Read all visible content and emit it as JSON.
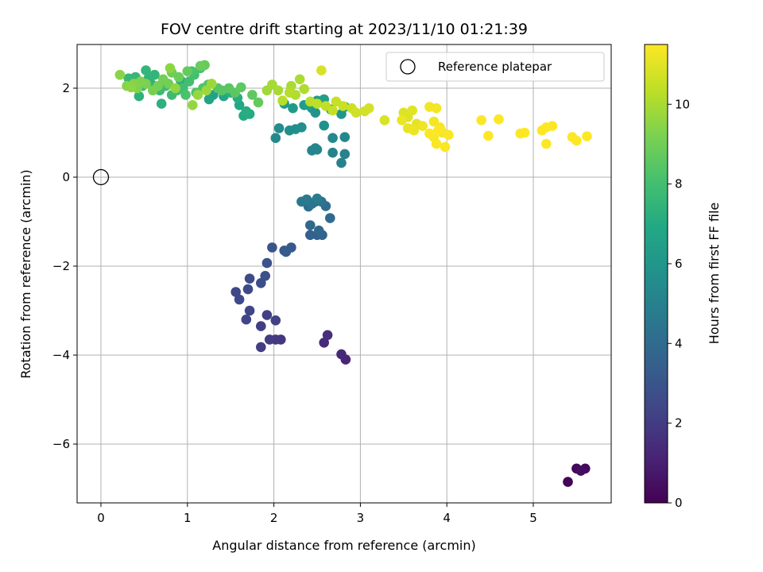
{
  "chart_data": {
    "type": "scatter",
    "title": "FOV centre drift starting at 2023/11/10 01:21:39",
    "xlabel": "Angular distance from reference (arcmin)",
    "ylabel": "Rotation from reference (arcmin)",
    "xlim": [
      -0.28,
      5.9
    ],
    "ylim": [
      -7.3,
      3.0
    ],
    "xticks": [
      0,
      1,
      2,
      3,
      4,
      5
    ],
    "yticks": [
      -6,
      -4,
      -2,
      0,
      2
    ],
    "grid": true,
    "legend": {
      "placement": "top-right",
      "entries": [
        "Reference platepar"
      ]
    },
    "reference_point": {
      "x": 0,
      "y": 0
    },
    "colorbar": {
      "label": "Hours from first FF file",
      "min": 0,
      "max": 11.5,
      "ticks": [
        0,
        2,
        4,
        6,
        8,
        10
      ],
      "colormap": "viridis"
    },
    "points": [
      [
        5.4,
        -6.85,
        0.1
      ],
      [
        5.5,
        -6.55,
        0.2
      ],
      [
        5.6,
        -6.55,
        0.3
      ],
      [
        5.55,
        -6.6,
        0.4
      ],
      [
        2.83,
        -4.1,
        1.2
      ],
      [
        2.78,
        -3.98,
        1.3
      ],
      [
        2.58,
        -3.72,
        1.4
      ],
      [
        2.62,
        -3.55,
        1.5
      ],
      [
        2.08,
        -3.65,
        1.8
      ],
      [
        2.02,
        -3.65,
        1.9
      ],
      [
        1.95,
        -3.65,
        2.0
      ],
      [
        1.85,
        -3.82,
        2.05
      ],
      [
        1.85,
        -3.35,
        2.1
      ],
      [
        1.92,
        -3.1,
        2.15
      ],
      [
        2.02,
        -3.22,
        2.2
      ],
      [
        1.68,
        -3.2,
        2.3
      ],
      [
        1.72,
        -3.0,
        2.35
      ],
      [
        1.6,
        -2.75,
        2.45
      ],
      [
        1.56,
        -2.58,
        2.5
      ],
      [
        1.7,
        -2.52,
        2.55
      ],
      [
        1.72,
        -2.28,
        2.6
      ],
      [
        1.85,
        -2.38,
        2.7
      ],
      [
        1.9,
        -2.22,
        2.8
      ],
      [
        1.92,
        -1.93,
        2.9
      ],
      [
        1.98,
        -1.58,
        3.0
      ],
      [
        2.12,
        -1.65,
        3.1
      ],
      [
        2.2,
        -1.58,
        3.2
      ],
      [
        2.14,
        -1.68,
        3.3
      ],
      [
        2.42,
        -1.3,
        3.5
      ],
      [
        2.5,
        -1.3,
        3.6
      ],
      [
        2.56,
        -1.3,
        3.7
      ],
      [
        2.52,
        -1.2,
        3.8
      ],
      [
        2.42,
        -1.08,
        3.9
      ],
      [
        2.65,
        -0.92,
        4.0
      ],
      [
        2.6,
        -0.65,
        4.1
      ],
      [
        2.4,
        -0.66,
        4.2
      ],
      [
        2.48,
        -0.55,
        4.3
      ],
      [
        2.55,
        -0.55,
        4.4
      ],
      [
        2.44,
        -0.6,
        4.5
      ],
      [
        2.32,
        -0.55,
        4.6
      ],
      [
        2.38,
        -0.5,
        4.7
      ],
      [
        2.5,
        -0.48,
        4.8
      ],
      [
        2.78,
        0.32,
        5.0
      ],
      [
        2.82,
        0.52,
        5.05
      ],
      [
        2.68,
        0.55,
        5.1
      ],
      [
        2.5,
        0.62,
        5.15
      ],
      [
        2.44,
        0.6,
        5.2
      ],
      [
        2.48,
        0.65,
        5.25
      ],
      [
        2.82,
        0.9,
        5.3
      ],
      [
        2.68,
        0.88,
        5.35
      ],
      [
        2.02,
        0.88,
        5.4
      ],
      [
        2.06,
        1.1,
        5.5
      ],
      [
        2.18,
        1.05,
        5.6
      ],
      [
        2.32,
        1.12,
        5.65
      ],
      [
        2.25,
        1.08,
        5.7
      ],
      [
        2.58,
        1.16,
        5.75
      ],
      [
        2.48,
        1.45,
        5.8
      ],
      [
        2.44,
        1.55,
        5.9
      ],
      [
        2.78,
        1.42,
        6.0
      ],
      [
        2.82,
        1.58,
        6.05
      ],
      [
        2.66,
        1.52,
        6.1
      ],
      [
        2.35,
        1.62,
        6.2
      ],
      [
        2.22,
        1.55,
        6.25
      ],
      [
        2.12,
        1.65,
        6.3
      ],
      [
        2.5,
        1.72,
        6.35
      ],
      [
        2.58,
        1.75,
        6.4
      ],
      [
        2.4,
        1.62,
        6.45
      ],
      [
        1.3,
        1.85,
        6.6
      ],
      [
        1.25,
        1.75,
        6.7
      ],
      [
        1.42,
        1.82,
        6.8
      ],
      [
        1.6,
        1.62,
        6.9
      ],
      [
        1.65,
        1.38,
        7.0
      ],
      [
        1.72,
        1.42,
        7.05
      ],
      [
        1.68,
        1.48,
        7.1
      ],
      [
        1.58,
        1.78,
        7.15
      ],
      [
        1.5,
        1.9,
        7.2
      ],
      [
        0.92,
        2.18,
        7.25
      ],
      [
        0.7,
        1.65,
        7.3
      ],
      [
        0.44,
        1.82,
        7.35
      ],
      [
        0.58,
        2.1,
        7.4
      ],
      [
        0.55,
        2.22,
        7.45
      ],
      [
        0.62,
        2.3,
        7.5
      ],
      [
        0.52,
        2.4,
        7.55
      ],
      [
        0.4,
        2.25,
        7.6
      ],
      [
        0.32,
        2.22,
        7.65
      ],
      [
        0.48,
        2.05,
        7.7
      ],
      [
        0.68,
        1.95,
        7.75
      ],
      [
        0.75,
        2.05,
        7.8
      ],
      [
        0.82,
        1.85,
        7.85
      ],
      [
        0.88,
        1.95,
        7.9
      ],
      [
        0.95,
        2.0,
        7.95
      ],
      [
        1.02,
        2.15,
        8.0
      ],
      [
        1.08,
        2.3,
        8.05
      ],
      [
        1.15,
        2.45,
        8.1
      ],
      [
        1.05,
        2.38,
        8.15
      ],
      [
        0.98,
        1.85,
        8.2
      ],
      [
        1.1,
        1.9,
        8.25
      ],
      [
        1.18,
        2.0,
        8.3
      ],
      [
        1.24,
        2.08,
        8.35
      ],
      [
        1.35,
        2.0,
        8.4
      ],
      [
        1.4,
        1.95,
        8.45
      ],
      [
        1.48,
        2.0,
        8.5
      ],
      [
        1.55,
        1.9,
        8.55
      ],
      [
        1.62,
        2.02,
        8.6
      ],
      [
        1.75,
        1.85,
        8.65
      ],
      [
        1.82,
        1.68,
        8.7
      ],
      [
        1.0,
        2.38,
        8.75
      ],
      [
        1.2,
        2.52,
        8.8
      ],
      [
        1.15,
        2.5,
        8.85
      ],
      [
        0.9,
        2.25,
        8.9
      ],
      [
        0.82,
        2.35,
        8.95
      ],
      [
        0.78,
        2.1,
        9.0
      ],
      [
        0.72,
        2.2,
        9.05
      ],
      [
        0.66,
        2.05,
        9.1
      ],
      [
        0.6,
        1.95,
        9.15
      ],
      [
        0.52,
        2.1,
        9.2
      ],
      [
        0.46,
        2.15,
        9.25
      ],
      [
        0.42,
        2.0,
        9.3
      ],
      [
        0.38,
        2.1,
        9.35
      ],
      [
        0.3,
        2.05,
        9.4
      ],
      [
        0.22,
        2.3,
        9.45
      ],
      [
        0.35,
        2.02,
        9.5
      ],
      [
        0.8,
        2.45,
        9.55
      ],
      [
        0.86,
        2.0,
        9.6
      ],
      [
        1.06,
        1.62,
        9.65
      ],
      [
        1.12,
        1.85,
        9.7
      ],
      [
        1.22,
        1.95,
        9.75
      ],
      [
        1.28,
        2.1,
        9.8
      ],
      [
        1.92,
        1.95,
        9.85
      ],
      [
        1.98,
        2.08,
        9.9
      ],
      [
        2.05,
        1.95,
        9.95
      ],
      [
        2.2,
        2.05,
        10.0
      ],
      [
        2.3,
        2.2,
        10.05
      ],
      [
        2.35,
        1.98,
        10.1
      ],
      [
        2.25,
        1.85,
        10.15
      ],
      [
        2.18,
        1.9,
        10.2
      ],
      [
        2.1,
        1.72,
        10.25
      ],
      [
        2.42,
        1.7,
        10.3
      ],
      [
        2.5,
        1.65,
        10.35
      ],
      [
        2.6,
        1.6,
        10.4
      ],
      [
        2.68,
        1.5,
        10.45
      ],
      [
        2.72,
        1.7,
        10.5
      ],
      [
        2.8,
        1.6,
        10.55
      ],
      [
        2.9,
        1.55,
        10.6
      ],
      [
        2.95,
        1.45,
        10.65
      ],
      [
        3.05,
        1.48,
        10.7
      ],
      [
        3.1,
        1.55,
        10.75
      ],
      [
        2.55,
        2.4,
        10.8
      ],
      [
        3.28,
        1.28,
        10.85
      ],
      [
        3.5,
        1.45,
        10.9
      ],
      [
        3.55,
        1.35,
        10.95
      ],
      [
        3.6,
        1.5,
        11.0
      ],
      [
        3.65,
        1.2,
        11.05
      ],
      [
        3.55,
        1.1,
        11.1
      ],
      [
        3.48,
        1.28,
        11.15
      ],
      [
        3.62,
        1.05,
        11.2
      ],
      [
        3.72,
        1.15,
        11.25
      ],
      [
        3.8,
        1.58,
        11.3
      ],
      [
        3.88,
        1.55,
        11.32
      ],
      [
        3.85,
        1.25,
        11.34
      ],
      [
        3.92,
        1.12,
        11.36
      ],
      [
        3.95,
        1.0,
        11.38
      ],
      [
        3.85,
        0.9,
        11.4
      ],
      [
        3.88,
        0.75,
        11.42
      ],
      [
        3.98,
        0.68,
        11.44
      ],
      [
        4.02,
        0.95,
        11.45
      ],
      [
        3.9,
        1.05,
        11.46
      ],
      [
        3.8,
        0.98,
        11.47
      ],
      [
        4.4,
        1.28,
        11.48
      ],
      [
        4.6,
        1.3,
        11.49
      ],
      [
        4.48,
        0.93,
        11.5
      ],
      [
        4.85,
        0.98,
        11.5
      ],
      [
        4.9,
        1.0,
        11.5
      ],
      [
        5.1,
        1.05,
        11.5
      ],
      [
        5.15,
        1.12,
        11.5
      ],
      [
        5.22,
        1.15,
        11.5
      ],
      [
        5.15,
        0.75,
        11.5
      ],
      [
        5.45,
        0.9,
        11.5
      ],
      [
        5.5,
        0.82,
        11.5
      ],
      [
        5.62,
        0.92,
        11.5
      ]
    ]
  }
}
